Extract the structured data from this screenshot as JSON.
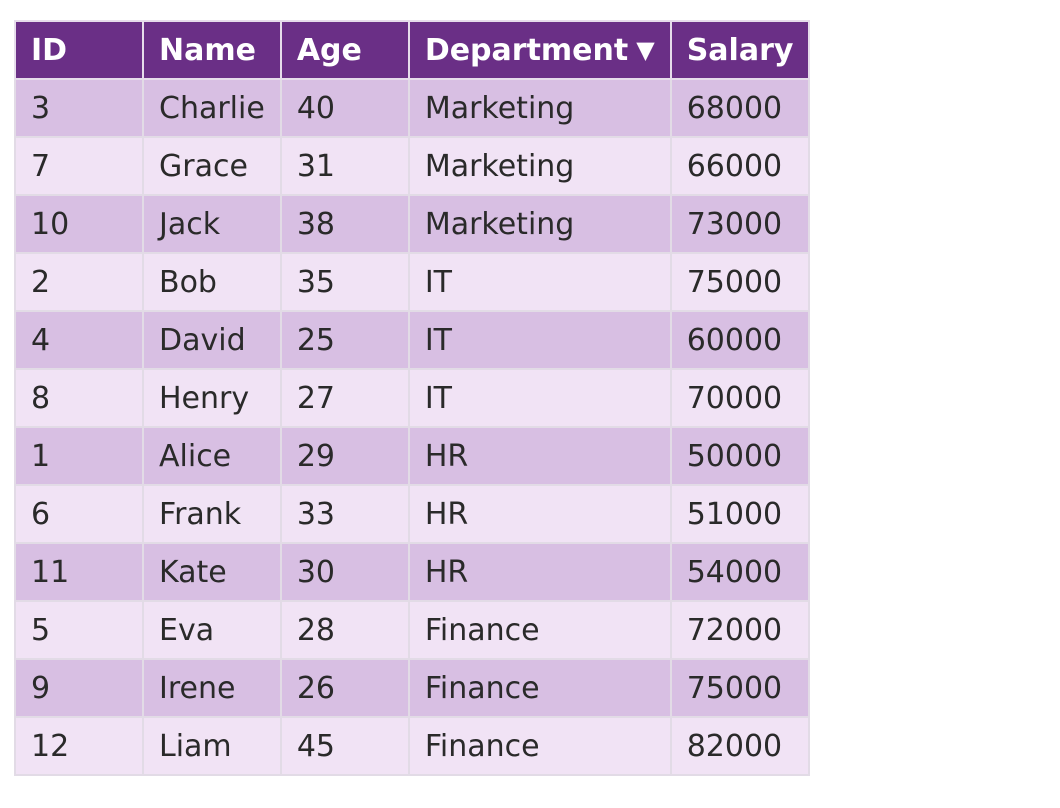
{
  "table": {
    "columns": [
      {
        "label": "ID"
      },
      {
        "label": "Name"
      },
      {
        "label": "Age"
      },
      {
        "label": "Department",
        "sort_indicator": "▼"
      },
      {
        "label": "Salary"
      }
    ],
    "rows": [
      {
        "id": "3",
        "name": "Charlie",
        "age": "40",
        "department": "Marketing",
        "salary": "68000"
      },
      {
        "id": "7",
        "name": "Grace",
        "age": "31",
        "department": "Marketing",
        "salary": "66000"
      },
      {
        "id": "10",
        "name": "Jack",
        "age": "38",
        "department": "Marketing",
        "salary": "73000"
      },
      {
        "id": "2",
        "name": "Bob",
        "age": "35",
        "department": "IT",
        "salary": "75000"
      },
      {
        "id": "4",
        "name": "David",
        "age": "25",
        "department": "IT",
        "salary": "60000"
      },
      {
        "id": "8",
        "name": "Henry",
        "age": "27",
        "department": "IT",
        "salary": "70000"
      },
      {
        "id": "1",
        "name": "Alice",
        "age": "29",
        "department": "HR",
        "salary": "50000"
      },
      {
        "id": "6",
        "name": "Frank",
        "age": "33",
        "department": "HR",
        "salary": "51000"
      },
      {
        "id": "11",
        "name": "Kate",
        "age": "30",
        "department": "HR",
        "salary": "54000"
      },
      {
        "id": "5",
        "name": "Eva",
        "age": "28",
        "department": "Finance",
        "salary": "72000"
      },
      {
        "id": "9",
        "name": "Irene",
        "age": "26",
        "department": "Finance",
        "salary": "75000"
      },
      {
        "id": "12",
        "name": "Liam",
        "age": "45",
        "department": "Finance",
        "salary": "82000"
      }
    ]
  },
  "colors": {
    "header_bg": "#6a2f86",
    "row_odd_bg": "#d8bfe3",
    "row_even_bg": "#f1e3f5"
  }
}
